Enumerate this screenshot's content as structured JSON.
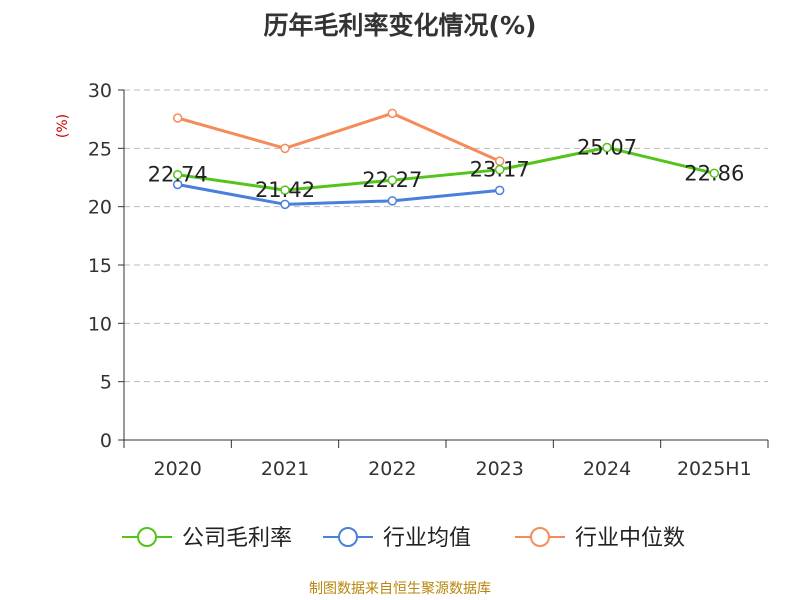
{
  "colors": {
    "series": [
      "#52c41a",
      "#4a7fdc",
      "#f68b5a"
    ],
    "axis": "#333333",
    "grid": "#bbbbbb",
    "unit": "#cc0000",
    "source": "#b8860b"
  },
  "chart_data": {
    "type": "line",
    "title": "历年毛利率变化情况(%)",
    "ylabel": "(%)",
    "xlabel": "",
    "categories": [
      "2020",
      "2021",
      "2022",
      "2023",
      "2024",
      "2025H1"
    ],
    "ylim": [
      0,
      30
    ],
    "yticks": [
      0,
      5,
      10,
      15,
      20,
      25,
      30
    ],
    "grid": "horizontal dashed",
    "legend_position": "bottom",
    "series": [
      {
        "name": "公司毛利率",
        "values": [
          22.74,
          21.42,
          22.27,
          23.17,
          25.07,
          22.86
        ],
        "labels": [
          "22.74",
          "21.42",
          "22.27",
          "23.17",
          "25.07",
          "22.86"
        ]
      },
      {
        "name": "行业均值",
        "values": [
          21.9,
          20.2,
          20.5,
          21.4,
          null,
          null
        ]
      },
      {
        "name": "行业中位数",
        "values": [
          27.6,
          25.0,
          28.0,
          23.9,
          null,
          null
        ]
      }
    ]
  },
  "footer": {
    "source": "制图数据来自恒生聚源数据库"
  }
}
